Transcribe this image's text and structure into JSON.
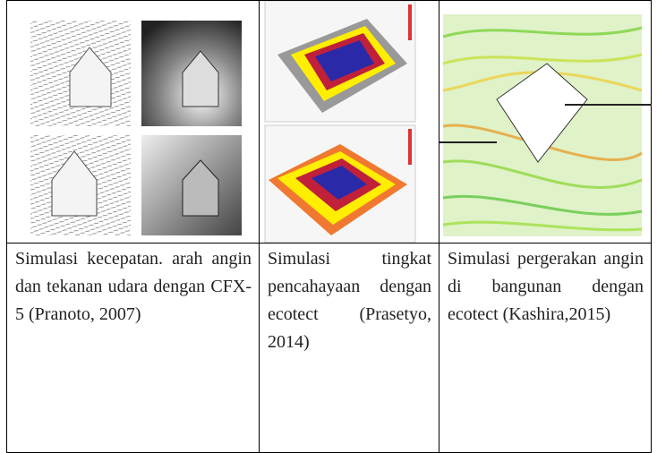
{
  "table": {
    "captions": [
      "Simulasi kecepatan. arah angin dan tekanan udara dengan CFX-5 (Pranoto, 2007)",
      "Simulasi tingkat pencahayaan dengan ecotect (Prasetyo, 2014)",
      "Simulasi pergerakan angin di bangunan dengan ecotect (Kashira,2015)"
    ]
  }
}
